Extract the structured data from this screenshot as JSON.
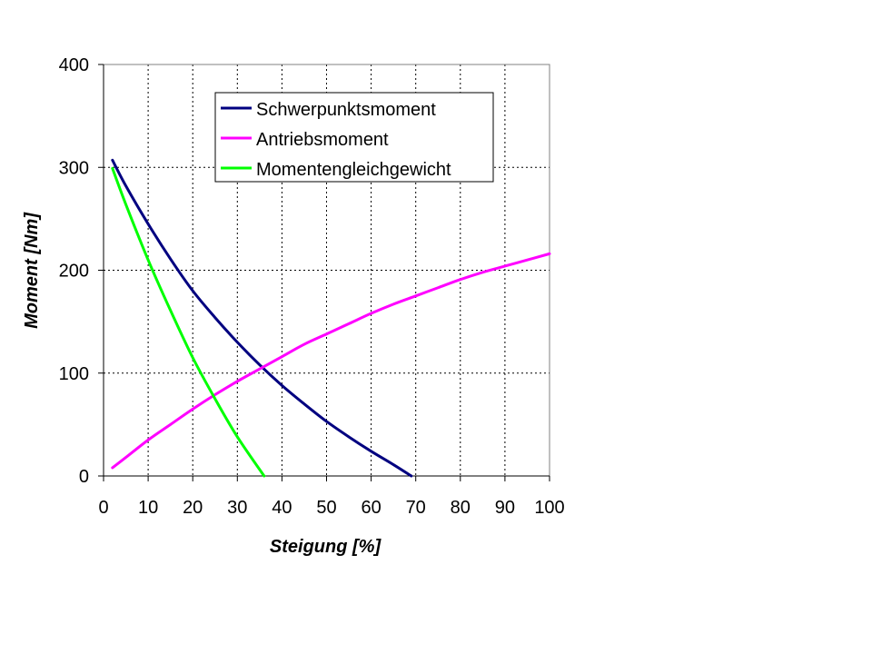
{
  "chart_data": {
    "type": "line",
    "xlabel": "Steigung [%]",
    "ylabel": "Moment [Nm]",
    "xlim": [
      0,
      100
    ],
    "ylim": [
      0,
      400
    ],
    "xticks": [
      "0",
      "10",
      "20",
      "30",
      "40",
      "50",
      "60",
      "70",
      "80",
      "90",
      "100"
    ],
    "yticks": [
      "0",
      "100",
      "200",
      "300",
      "400"
    ],
    "grid": true,
    "legend_position": "top-right",
    "series": [
      {
        "name": "Schwerpunktsmoment",
        "color": "#000080",
        "x": [
          2,
          5,
          10,
          15,
          20,
          25,
          30,
          35,
          40,
          45,
          50,
          55,
          60,
          65,
          69
        ],
        "y": [
          307,
          282,
          245,
          211,
          180,
          154,
          130,
          108,
          88,
          70,
          53,
          38,
          24,
          11,
          0
        ]
      },
      {
        "name": "Antriebsmoment",
        "color": "#ff00ff",
        "x": [
          2,
          5,
          10,
          15,
          20,
          25,
          30,
          35,
          40,
          45,
          50,
          55,
          60,
          65,
          70,
          75,
          80,
          85,
          90,
          95,
          100
        ],
        "y": [
          8,
          18,
          35,
          50,
          65,
          79,
          92,
          104,
          116,
          128,
          138,
          148,
          158,
          167,
          175,
          183,
          191,
          198,
          204,
          210,
          216
        ]
      },
      {
        "name": "Momentengleichgewicht",
        "color": "#00ff00",
        "x": [
          2,
          5,
          10,
          15,
          20,
          25,
          30,
          36
        ],
        "y": [
          299,
          264,
          210,
          161,
          115,
          75,
          38,
          0
        ]
      }
    ]
  }
}
